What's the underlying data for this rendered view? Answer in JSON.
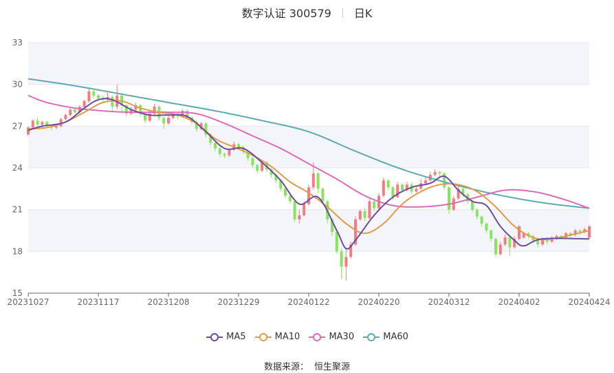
{
  "header": {
    "stock": "数字认证 300579",
    "period": "日K"
  },
  "source": {
    "label": "数据来源：",
    "value": "恒生聚源"
  },
  "colors": {
    "up": "#f37b82",
    "down": "#89e35f",
    "MA5": "#6a4c9c",
    "MA10": "#e09a4a",
    "MA30": "#d96cb8",
    "MA60": "#5ea9ad"
  },
  "chart_data": {
    "type": "candlestick",
    "ylim": [
      15,
      33
    ],
    "y_ticks": [
      15,
      18,
      21,
      24,
      27,
      30,
      33
    ],
    "x_ticks": [
      "20231027",
      "20231117",
      "20231208",
      "20231229",
      "20240122",
      "20240220",
      "20240312",
      "20240402",
      "20240424"
    ],
    "x_tick_index": [
      0,
      15,
      30,
      45,
      60,
      75,
      90,
      105,
      120
    ],
    "n_points": 121,
    "legend": [
      "MA5",
      "MA10",
      "MA30",
      "MA60"
    ],
    "candles": [
      [
        26.4,
        26.9,
        26.3,
        27.0
      ],
      [
        26.9,
        27.4,
        26.8,
        27.5
      ],
      [
        27.4,
        27.1,
        27.0,
        27.6
      ],
      [
        27.1,
        27.3,
        26.9,
        27.4
      ],
      [
        27.3,
        27.0,
        26.9,
        27.4
      ],
      [
        27.0,
        26.9,
        26.7,
        27.1
      ],
      [
        26.9,
        27.0,
        26.8,
        27.2
      ],
      [
        27.0,
        27.5,
        26.9,
        27.6
      ],
      [
        27.5,
        27.8,
        27.4,
        27.9
      ],
      [
        27.8,
        28.2,
        27.7,
        28.3
      ],
      [
        28.2,
        28.0,
        27.9,
        28.3
      ],
      [
        28.0,
        28.4,
        27.9,
        28.5
      ],
      [
        28.4,
        28.8,
        28.3,
        28.9
      ],
      [
        28.8,
        29.5,
        28.7,
        29.7
      ],
      [
        29.5,
        29.2,
        29.0,
        29.6
      ],
      [
        29.2,
        29.0,
        28.8,
        29.3
      ],
      [
        29.0,
        28.9,
        28.7,
        29.2
      ],
      [
        28.9,
        29.1,
        28.8,
        29.4
      ],
      [
        29.1,
        28.4,
        28.1,
        29.2
      ],
      [
        28.4,
        29.2,
        28.2,
        30.0
      ],
      [
        29.2,
        28.5,
        28.0,
        29.4
      ],
      [
        28.5,
        27.9,
        27.7,
        28.6
      ],
      [
        27.9,
        28.2,
        27.8,
        28.4
      ],
      [
        28.2,
        28.5,
        28.0,
        28.7
      ],
      [
        28.5,
        27.9,
        27.7,
        28.6
      ],
      [
        27.9,
        27.4,
        27.2,
        28.0
      ],
      [
        27.4,
        27.9,
        27.3,
        28.1
      ],
      [
        27.9,
        28.4,
        27.8,
        28.6
      ],
      [
        28.4,
        27.6,
        27.4,
        28.5
      ],
      [
        27.6,
        27.2,
        26.8,
        27.7
      ],
      [
        27.2,
        27.6,
        27.1,
        27.8
      ],
      [
        27.6,
        27.9,
        27.5,
        28.0
      ],
      [
        27.9,
        27.7,
        27.5,
        28.0
      ],
      [
        27.7,
        28.1,
        27.6,
        28.2
      ],
      [
        28.1,
        27.6,
        27.5,
        28.2
      ],
      [
        27.6,
        27.3,
        27.1,
        27.7
      ],
      [
        27.3,
        26.8,
        26.6,
        27.4
      ],
      [
        26.8,
        27.2,
        26.7,
        27.3
      ],
      [
        27.2,
        26.4,
        26.2,
        27.3
      ],
      [
        26.4,
        25.8,
        25.6,
        26.5
      ],
      [
        25.8,
        25.4,
        25.2,
        25.9
      ],
      [
        25.4,
        25.0,
        24.8,
        25.5
      ],
      [
        25.0,
        24.9,
        24.7,
        25.1
      ],
      [
        24.9,
        25.3,
        24.8,
        25.4
      ],
      [
        25.3,
        25.7,
        25.2,
        25.9
      ],
      [
        25.7,
        25.5,
        25.3,
        25.8
      ],
      [
        25.5,
        25.2,
        25.0,
        25.6
      ],
      [
        25.2,
        24.7,
        24.5,
        25.3
      ],
      [
        24.7,
        24.2,
        24.0,
        24.8
      ],
      [
        24.2,
        23.8,
        23.6,
        24.3
      ],
      [
        23.8,
        24.4,
        23.7,
        24.5
      ],
      [
        24.4,
        23.9,
        23.7,
        24.5
      ],
      [
        23.9,
        23.5,
        23.3,
        24.0
      ],
      [
        23.5,
        23.1,
        22.9,
        23.6
      ],
      [
        23.1,
        22.5,
        22.3,
        23.2
      ],
      [
        22.5,
        22.0,
        21.8,
        22.6
      ],
      [
        22.0,
        21.6,
        21.4,
        22.1
      ],
      [
        21.6,
        20.3,
        20.1,
        21.7
      ],
      [
        20.3,
        20.6,
        20.0,
        21.0
      ],
      [
        20.6,
        21.4,
        20.5,
        21.6
      ],
      [
        21.4,
        22.6,
        21.3,
        22.8
      ],
      [
        22.6,
        23.6,
        22.4,
        24.4
      ],
      [
        23.6,
        22.5,
        22.2,
        23.7
      ],
      [
        22.5,
        21.6,
        21.4,
        22.6
      ],
      [
        21.6,
        20.3,
        20.0,
        21.7
      ],
      [
        20.3,
        19.4,
        19.1,
        20.4
      ],
      [
        19.4,
        18.0,
        17.8,
        19.5
      ],
      [
        18.0,
        16.9,
        16.0,
        18.2
      ],
      [
        16.9,
        17.6,
        15.9,
        18.1
      ],
      [
        17.6,
        18.5,
        17.5,
        18.7
      ],
      [
        18.5,
        20.3,
        18.4,
        20.5
      ],
      [
        20.3,
        20.9,
        20.2,
        21.0
      ],
      [
        20.9,
        20.4,
        20.2,
        21.1
      ],
      [
        20.4,
        21.6,
        20.3,
        21.8
      ],
      [
        21.6,
        21.1,
        20.9,
        21.7
      ],
      [
        21.1,
        22.0,
        21.0,
        22.2
      ],
      [
        22.0,
        23.1,
        21.9,
        23.3
      ],
      [
        23.1,
        22.6,
        22.4,
        23.2
      ],
      [
        22.6,
        21.9,
        21.7,
        22.7
      ],
      [
        21.9,
        22.8,
        21.8,
        23.0
      ],
      [
        22.8,
        22.4,
        22.2,
        22.9
      ],
      [
        22.4,
        22.8,
        22.3,
        23.0
      ],
      [
        22.8,
        22.3,
        22.1,
        22.9
      ],
      [
        22.3,
        22.5,
        22.2,
        22.7
      ],
      [
        22.5,
        22.9,
        22.4,
        23.2
      ],
      [
        22.9,
        23.1,
        22.8,
        23.3
      ],
      [
        23.1,
        23.5,
        23.0,
        23.7
      ],
      [
        23.5,
        23.7,
        23.4,
        23.9
      ],
      [
        23.7,
        23.6,
        23.4,
        23.8
      ],
      [
        23.6,
        22.6,
        22.4,
        23.7
      ],
      [
        22.6,
        21.0,
        20.7,
        22.7
      ],
      [
        21.0,
        21.8,
        20.9,
        22.0
      ],
      [
        21.8,
        22.5,
        21.7,
        22.7
      ],
      [
        22.5,
        22.1,
        21.9,
        22.6
      ],
      [
        22.1,
        21.6,
        21.4,
        22.2
      ],
      [
        21.6,
        21.0,
        20.8,
        21.7
      ],
      [
        21.0,
        20.5,
        20.3,
        21.1
      ],
      [
        20.5,
        20.0,
        19.8,
        20.6
      ],
      [
        20.0,
        19.5,
        19.3,
        20.1
      ],
      [
        19.5,
        18.9,
        18.7,
        19.6
      ],
      [
        18.9,
        17.8,
        17.6,
        19.0
      ],
      [
        17.8,
        18.5,
        17.7,
        18.7
      ],
      [
        18.5,
        19.0,
        18.4,
        19.2
      ],
      [
        19.0,
        18.3,
        17.7,
        19.1
      ],
      [
        18.3,
        18.9,
        18.2,
        19.1
      ],
      [
        18.9,
        19.8,
        18.8,
        19.9
      ],
      [
        19.0,
        19.3,
        18.9,
        19.4
      ],
      [
        19.3,
        19.1,
        18.9,
        19.4
      ],
      [
        19.1,
        18.8,
        18.6,
        19.2
      ],
      [
        18.8,
        18.5,
        18.3,
        18.9
      ],
      [
        18.5,
        18.9,
        18.4,
        19.0
      ],
      [
        18.9,
        18.7,
        18.5,
        19.0
      ],
      [
        18.7,
        18.9,
        18.6,
        19.1
      ],
      [
        18.9,
        19.1,
        18.8,
        19.2
      ],
      [
        19.1,
        19.0,
        18.9,
        19.2
      ],
      [
        19.0,
        19.3,
        18.9,
        19.4
      ],
      [
        19.3,
        19.2,
        19.0,
        19.4
      ],
      [
        19.2,
        19.5,
        19.1,
        19.6
      ],
      [
        19.5,
        19.4,
        19.2,
        19.6
      ],
      [
        19.4,
        19.6,
        19.3,
        19.7
      ],
      [
        19.0,
        19.8,
        18.9,
        19.9
      ]
    ],
    "ma_knots": {
      "MA5": [
        [
          0,
          26.7
        ],
        [
          3,
          27.0
        ],
        [
          8,
          27.3
        ],
        [
          12,
          28.3
        ],
        [
          15,
          28.9
        ],
        [
          18,
          28.9
        ],
        [
          22,
          28.2
        ],
        [
          26,
          27.8
        ],
        [
          30,
          27.8
        ],
        [
          34,
          27.7
        ],
        [
          38,
          26.6
        ],
        [
          42,
          25.4
        ],
        [
          46,
          25.4
        ],
        [
          50,
          24.4
        ],
        [
          54,
          23.1
        ],
        [
          58,
          21.4
        ],
        [
          62,
          21.9
        ],
        [
          66,
          19.5
        ],
        [
          68,
          18.2
        ],
        [
          70,
          18.8
        ],
        [
          74,
          20.6
        ],
        [
          78,
          21.9
        ],
        [
          82,
          22.6
        ],
        [
          86,
          22.9
        ],
        [
          89,
          23.4
        ],
        [
          92,
          22.4
        ],
        [
          95,
          21.6
        ],
        [
          98,
          21.3
        ],
        [
          101,
          19.8
        ],
        [
          104,
          18.8
        ],
        [
          106,
          18.4
        ],
        [
          110,
          18.9
        ],
        [
          120,
          18.9
        ]
      ],
      "MA10": [
        [
          0,
          26.8
        ],
        [
          4,
          26.9
        ],
        [
          8,
          27.3
        ],
        [
          12,
          28.0
        ],
        [
          16,
          28.7
        ],
        [
          20,
          28.8
        ],
        [
          24,
          28.3
        ],
        [
          28,
          28.0
        ],
        [
          32,
          27.8
        ],
        [
          36,
          27.2
        ],
        [
          40,
          26.1
        ],
        [
          44,
          25.5
        ],
        [
          48,
          24.9
        ],
        [
          52,
          24.1
        ],
        [
          56,
          23.0
        ],
        [
          60,
          22.2
        ],
        [
          64,
          21.2
        ],
        [
          68,
          20.0
        ],
        [
          72,
          19.3
        ],
        [
          76,
          20.0
        ],
        [
          80,
          21.4
        ],
        [
          84,
          22.3
        ],
        [
          88,
          22.8
        ],
        [
          92,
          22.8
        ],
        [
          96,
          22.3
        ],
        [
          100,
          21.2
        ],
        [
          104,
          19.8
        ],
        [
          108,
          19.0
        ],
        [
          112,
          18.9
        ],
        [
          120,
          19.5
        ]
      ],
      "MA30": [
        [
          0,
          29.2
        ],
        [
          4,
          28.7
        ],
        [
          10,
          28.3
        ],
        [
          16,
          28.1
        ],
        [
          22,
          28.0
        ],
        [
          30,
          28.0
        ],
        [
          36,
          27.9
        ],
        [
          42,
          27.2
        ],
        [
          48,
          26.3
        ],
        [
          54,
          25.4
        ],
        [
          60,
          24.3
        ],
        [
          66,
          23.2
        ],
        [
          72,
          22.0
        ],
        [
          78,
          21.3
        ],
        [
          84,
          21.2
        ],
        [
          90,
          21.4
        ],
        [
          96,
          21.9
        ],
        [
          102,
          22.4
        ],
        [
          108,
          22.3
        ],
        [
          114,
          21.8
        ],
        [
          120,
          21.1
        ]
      ],
      "MA60": [
        [
          0,
          30.4
        ],
        [
          10,
          29.9
        ],
        [
          20,
          29.3
        ],
        [
          30,
          28.7
        ],
        [
          40,
          28.1
        ],
        [
          50,
          27.4
        ],
        [
          60,
          26.6
        ],
        [
          70,
          25.2
        ],
        [
          80,
          23.9
        ],
        [
          90,
          22.9
        ],
        [
          100,
          22.1
        ],
        [
          110,
          21.5
        ],
        [
          120,
          21.1
        ]
      ]
    }
  }
}
